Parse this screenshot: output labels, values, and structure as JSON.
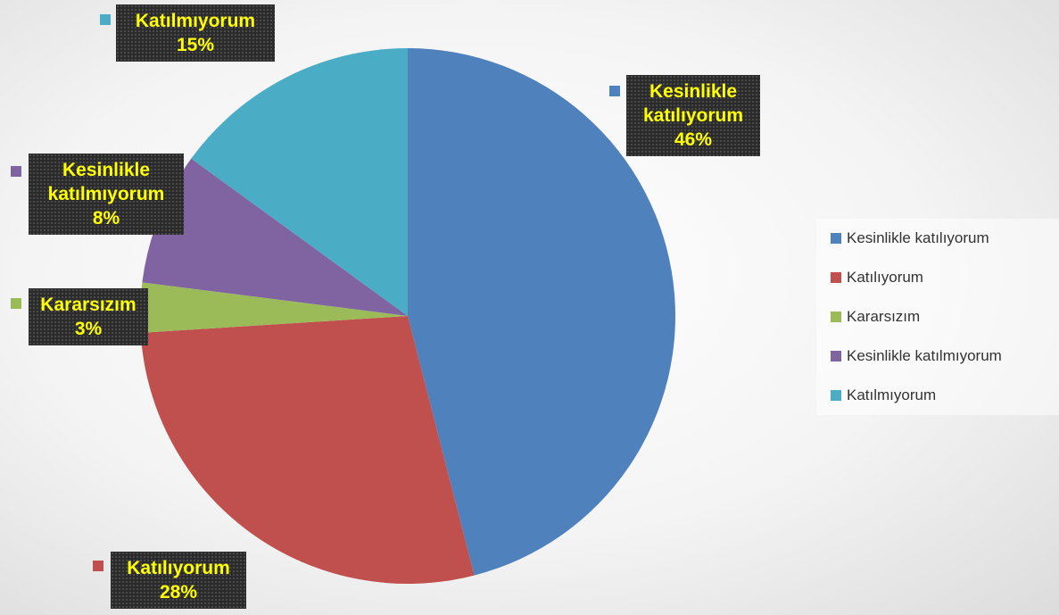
{
  "chart_data": {
    "type": "pie",
    "categories": [
      "Kesinlikle katılıyorum",
      "Katılıyorum",
      "Kararsızım",
      "Kesinlikle katılmıyorum",
      "Katılmıyorum"
    ],
    "values": [
      46,
      28,
      3,
      8,
      15
    ],
    "value_labels": [
      "46%",
      "28%",
      "3%",
      "8%",
      "15%"
    ],
    "colors": [
      "#4f81bd",
      "#c0504d",
      "#9bbb59",
      "#8064a2",
      "#4bacc6"
    ],
    "legend": "right"
  }
}
